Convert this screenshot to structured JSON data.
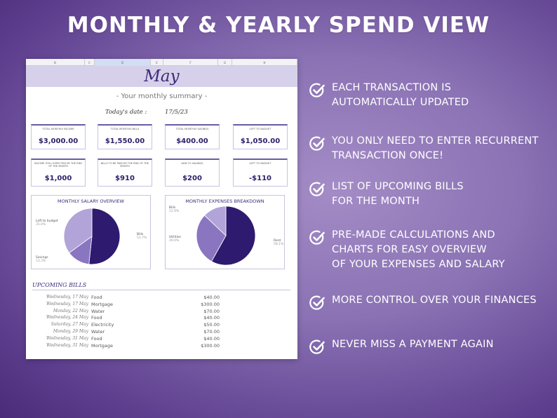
{
  "headline": "MONTHLY & YEARLY SPEND VIEW",
  "sheet": {
    "columns": [
      "B",
      "C",
      "D",
      "E",
      "F",
      "G",
      "H"
    ],
    "month": "May",
    "subtitle": "- Your monthly summary -",
    "date_label": "Today's date :",
    "date_value": "17/5/23",
    "cards_row1": [
      {
        "label": "TOTAL MONTHLY INCOME",
        "value": "$3,000.00"
      },
      {
        "label": "TOTAL MONTHLY BILLS",
        "value": "$1,550.00"
      },
      {
        "label": "TOTAL MONTHLY SAVINGS",
        "value": "$400.00"
      },
      {
        "label": "LEFT TO BUDGET",
        "value": "$1,050.00"
      }
    ],
    "cards_row2": [
      {
        "label": "INCOME STILL EXPECTED BY THE END OF THE MONTH",
        "value": "$1,000"
      },
      {
        "label": "BILLS TO BE PAID BY THE END OF THE MONTH",
        "value": "$910"
      },
      {
        "label": "ADD TO SAVINGS",
        "value": "$200"
      },
      {
        "label": "LEFT TO BUDGET",
        "value": "-$110"
      }
    ],
    "salary_chart": {
      "title": "MONTHLY SALARY OVERVIEW",
      "labels": [
        {
          "name": "Left to budget",
          "pct": "35.0%"
        },
        {
          "name": "Bills",
          "pct": "51.7%"
        },
        {
          "name": "Savings",
          "pct": "13.3%"
        }
      ]
    },
    "expenses_chart": {
      "title": "MONTHLY EXPENSES BREAKDOWN",
      "labels": [
        {
          "name": "Bills",
          "pct": "12.9%"
        },
        {
          "name": "Utilities",
          "pct": "29.0%"
        },
        {
          "name": "Rent",
          "pct": "58.1%"
        }
      ]
    },
    "bills_title": "UPCOMING BILLS",
    "bills": [
      {
        "date": "Wednesday, 17 May",
        "name": "Food",
        "amount": "$40.00"
      },
      {
        "date": "Wednesday, 17 May",
        "name": "Mortgage",
        "amount": "$300.00"
      },
      {
        "date": "Monday, 22 May",
        "name": "Water",
        "amount": "$70.00"
      },
      {
        "date": "Wednesday, 24 May",
        "name": "Food",
        "amount": "$40.00"
      },
      {
        "date": "Saturday, 27 May",
        "name": "Electricity",
        "amount": "$50.00"
      },
      {
        "date": "Monday, 29 May",
        "name": "Water",
        "amount": "$70.00"
      },
      {
        "date": "Wednesday, 31 May",
        "name": "Food",
        "amount": "$40.00"
      },
      {
        "date": "Wednesday, 31 May",
        "name": "Mortgage",
        "amount": "$300.00"
      }
    ]
  },
  "features": [
    "EACH TRANSACTION IS\nAUTOMATICALLY UPDATED",
    "YOU ONLY NEED TO ENTER RECURRENT\nTRANSACTION ONCE!",
    "LIST OF UPCOMING BILLS\nFOR THE MONTH",
    "PRE-MADE CALCULATIONS AND\nCHARTS FOR EASY OVERVIEW\nOF YOUR EXPENSES AND SALARY",
    "MORE CONTROL OVER YOUR FINANCES",
    "NEVER MISS A PAYMENT AGAIN"
  ],
  "chart_data": [
    {
      "type": "pie",
      "title": "MONTHLY SALARY OVERVIEW",
      "categories": [
        "Bills",
        "Savings",
        "Left to budget"
      ],
      "values": [
        51.7,
        13.3,
        35.0
      ],
      "colors": [
        "#2e1a6e",
        "#8a75c0",
        "#b2a4d8"
      ]
    },
    {
      "type": "pie",
      "title": "MONTHLY EXPENSES BREAKDOWN",
      "categories": [
        "Rent",
        "Utilities",
        "Bills"
      ],
      "values": [
        58.1,
        29.0,
        12.9
      ],
      "colors": [
        "#2e1a6e",
        "#8a75c0",
        "#b2a4d8"
      ]
    }
  ]
}
